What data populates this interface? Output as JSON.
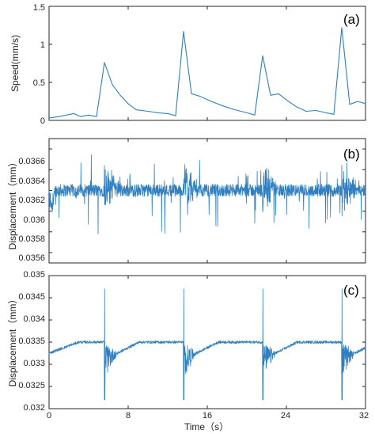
{
  "figure": {
    "xlabel": "Time（s）",
    "series_color": "#2f7fc1"
  },
  "chart_data": [
    {
      "type": "line",
      "panel_label": "(a)",
      "ylabel": "Speed(mm/s)",
      "xlim": [
        0,
        32
      ],
      "ylim": [
        0,
        1.5
      ],
      "yticks": [
        "0",
        "0.5",
        "1",
        "1.5"
      ],
      "xticks": [],
      "grid": false,
      "x": [
        0,
        1.0,
        2.5,
        3.2,
        4.0,
        4.8,
        5.6,
        6.4,
        7.2,
        8.0,
        8.8,
        10.0,
        11.0,
        12.0,
        12.8,
        13.6,
        14.4,
        15.2,
        16.4,
        17.6,
        18.8,
        20.0,
        20.8,
        21.6,
        22.4,
        23.2,
        24.0,
        25.0,
        26.0,
        27.0,
        28.0,
        28.8,
        29.6,
        30.4,
        31.2,
        32.0
      ],
      "y": [
        0.03,
        0.05,
        0.09,
        0.05,
        0.07,
        0.05,
        0.76,
        0.47,
        0.33,
        0.22,
        0.14,
        0.12,
        0.1,
        0.09,
        0.06,
        1.17,
        0.35,
        0.32,
        0.25,
        0.19,
        0.14,
        0.1,
        0.07,
        0.85,
        0.33,
        0.35,
        0.27,
        0.18,
        0.12,
        0.13,
        0.1,
        0.08,
        1.22,
        0.21,
        0.25,
        0.22
      ]
    },
    {
      "type": "line",
      "panel_label": "(b)",
      "ylabel": "Displacement（mm）",
      "xlim": [
        0,
        32
      ],
      "ylim": [
        0.0355,
        0.0367
      ],
      "yticks": [
        "0.0356",
        "0.0358",
        "0.036",
        "0.0362",
        "0.0364",
        "0.0366"
      ],
      "xticks": [],
      "grid": false,
      "baseline_mm": 0.0362,
      "event_times_s": [
        5.6,
        13.6,
        21.6,
        29.6
      ],
      "range_mm": [
        0.03578,
        0.0366
      ]
    },
    {
      "type": "line",
      "panel_label": "(c)",
      "ylabel": "Displacement（mm）",
      "xlim": [
        0,
        32
      ],
      "ylim": [
        0.032,
        0.035
      ],
      "yticks": [
        "0.032",
        "0.0325",
        "0.033",
        "0.0335",
        "0.034",
        "0.0345",
        "0.035"
      ],
      "xticks": [
        "0",
        "8",
        "16",
        "24",
        "32"
      ],
      "grid": false,
      "baseline_mm": 0.0335,
      "event_times_s": [
        5.6,
        13.6,
        21.6,
        29.6
      ],
      "range_mm": [
        0.0322,
        0.0347
      ]
    }
  ]
}
